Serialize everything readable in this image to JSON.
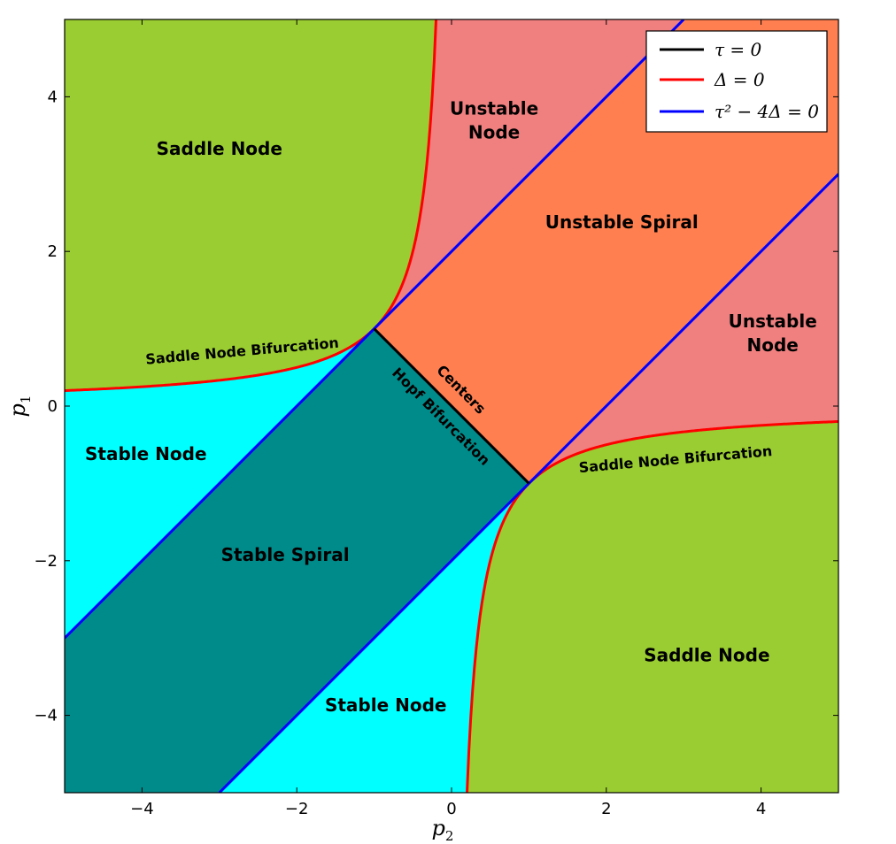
{
  "chart_data": {
    "type": "area",
    "title": "",
    "xlabel": "p",
    "xlabel_sub": "2",
    "ylabel": "p",
    "ylabel_sub": "1",
    "xlim": [
      -5,
      5
    ],
    "ylim": [
      -5,
      5
    ],
    "x_ticks": [
      -4,
      -2,
      0,
      2,
      4
    ],
    "y_ticks": [
      -4,
      -2,
      0,
      2,
      4
    ],
    "x_tick_labels": [
      "−4",
      "−2",
      "0",
      "2",
      "4"
    ],
    "y_tick_labels": [
      "−4",
      "−2",
      "0",
      "2",
      "4"
    ],
    "grid": false,
    "legend_position": "top-right",
    "series": [
      {
        "name": "τ = 0",
        "color": "#000000",
        "curve": "tau_zero",
        "segment": {
          "p2": [
            -1,
            1
          ],
          "p1": [
            1,
            -1
          ]
        }
      },
      {
        "name": "Δ = 0",
        "color": "#ff0000",
        "curve": "delta_zero",
        "relation": "p1 * p2 = -1"
      },
      {
        "name": "τ² − 4Δ = 0",
        "color": "#0000ff",
        "curve": "discriminant_zero",
        "relation": "p1 = p2 + 2 and p1 = p2 - 2"
      }
    ],
    "regions": [
      {
        "label": "Saddle Node",
        "color": "#9acd32",
        "at": [
          -3,
          3.25
        ]
      },
      {
        "label": "Saddle Node",
        "color": "#9acd32",
        "at": [
          3.3,
          -3.3
        ]
      },
      {
        "label": "Unstable Node",
        "color": "#f08080",
        "at": [
          0.55,
          3.7
        ]
      },
      {
        "label": "Unstable Node",
        "color": "#f08080",
        "at": [
          4.15,
          0.95
        ]
      },
      {
        "label": "Unstable Spiral",
        "color": "#ff7f50",
        "at": [
          2.2,
          2.3
        ]
      },
      {
        "label": "Stable Node",
        "color": "#00ffff",
        "at": [
          -3.95,
          -0.7
        ]
      },
      {
        "label": "Stable Node",
        "color": "#00ffff",
        "at": [
          -0.85,
          -3.95
        ]
      },
      {
        "label": "Stable Spiral",
        "color": "#008b8b",
        "at": [
          -2.15,
          -2
        ]
      }
    ],
    "annotations": [
      {
        "text": "Saddle Node Bifurcation",
        "at": [
          -2.7,
          0.65
        ],
        "angle": -5
      },
      {
        "text": "Saddle Node Bifurcation",
        "at": [
          2.9,
          -0.75
        ],
        "angle": -5
      },
      {
        "text": "Centers",
        "at": [
          0.08,
          0.17
        ],
        "angle": 45
      },
      {
        "text": "Hopf Bifurcation",
        "at": [
          -0.18,
          -0.18
        ],
        "angle": 45
      }
    ]
  }
}
